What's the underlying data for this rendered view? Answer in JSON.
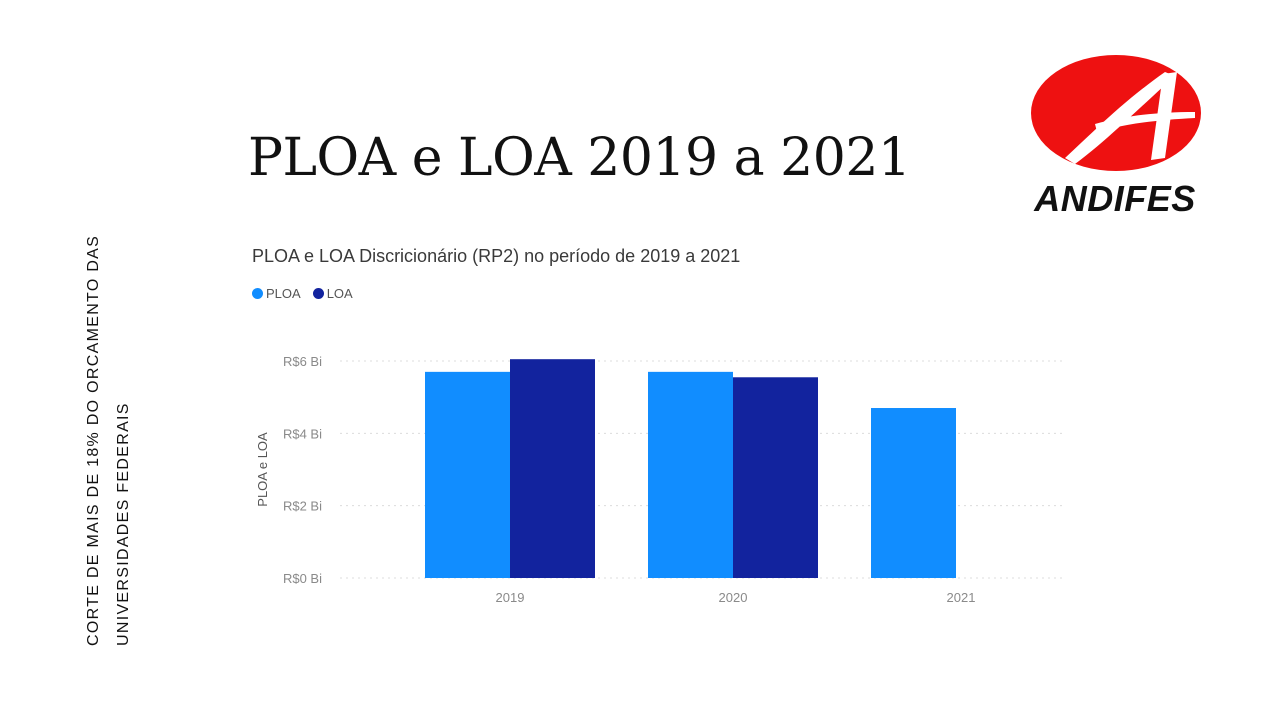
{
  "side_caption": {
    "line1": "CORTE DE MAIS DE 18% DO ORCAMENTO DAS",
    "line2": "UNIVERSIDADES FEDERAIS"
  },
  "slide_title": "PLOA e LOA 2019 a 2021",
  "logo": {
    "word": "ANDIFES",
    "color": "#ee1111"
  },
  "chart_data": {
    "type": "bar",
    "title": "PLOA e LOA Discricionário (RP2) no período de 2019 a 2021",
    "ylabel": "PLOA e LOA",
    "xlabel": "",
    "categories": [
      "2019",
      "2020",
      "2021"
    ],
    "series": [
      {
        "name": "PLOA",
        "color": "#118dff",
        "values": [
          5.7,
          5.7,
          4.7
        ]
      },
      {
        "name": "LOA",
        "color": "#12239e",
        "values": [
          6.05,
          5.55,
          null
        ]
      }
    ],
    "yticks": [
      0,
      2,
      4,
      6
    ],
    "ytick_labels": [
      "R$0 Bi",
      "R$2 Bi",
      "R$4 Bi",
      "R$6 Bi"
    ],
    "ylim": [
      0,
      6
    ],
    "grid": true,
    "legend_position": "top-left"
  }
}
